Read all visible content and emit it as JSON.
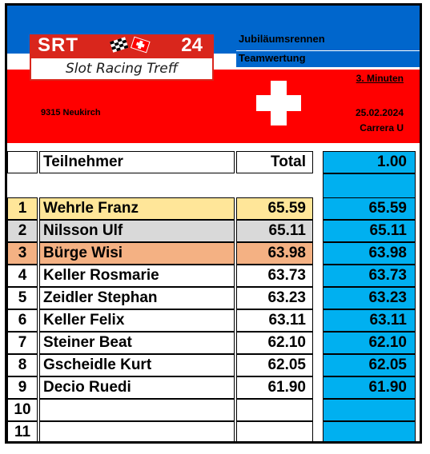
{
  "logo": {
    "srt": "SRT",
    "number": "24",
    "subtitle": "Slot Racing Treff",
    "colors": {
      "red": "#d9261c"
    }
  },
  "header": {
    "title": "Jubiläumsrennen",
    "subtitle": "Teamwertung",
    "mode": "3. Minuten",
    "location": "9315 Neukirch",
    "date": "25.02.2024",
    "track": "Carrera U"
  },
  "table": {
    "col_participant": "Teilnehmer",
    "col_total": "Total",
    "factor": "1.00",
    "rows": [
      {
        "rank": "1",
        "name": "Wehrle Franz",
        "total": "65.59",
        "score": "65.59"
      },
      {
        "rank": "2",
        "name": "Nilsson Ulf",
        "total": "65.11",
        "score": "65.11"
      },
      {
        "rank": "3",
        "name": "Bürge Wisi",
        "total": "63.98",
        "score": "63.98"
      },
      {
        "rank": "4",
        "name": "Keller Rosmarie",
        "total": "63.73",
        "score": "63.73"
      },
      {
        "rank": "5",
        "name": "Zeidler Stephan",
        "total": "63.23",
        "score": "63.23"
      },
      {
        "rank": "6",
        "name": "Keller Felix",
        "total": "63.11",
        "score": "63.11"
      },
      {
        "rank": "7",
        "name": "Steiner Beat",
        "total": "62.10",
        "score": "62.10"
      },
      {
        "rank": "8",
        "name": "Gscheidle Kurt",
        "total": "62.05",
        "score": "62.05"
      },
      {
        "rank": "9",
        "name": "Decio Ruedi",
        "total": "61.90",
        "score": "61.90"
      },
      {
        "rank": "10",
        "name": "",
        "total": "",
        "score": ""
      },
      {
        "rank": "11",
        "name": "",
        "total": "",
        "score": ""
      }
    ]
  },
  "colors": {
    "blue": "#0066cc",
    "red": "#ff0000",
    "score_bg": "#00b0f0",
    "gold": "#ffe699",
    "silver": "#d9d9d9",
    "bronze": "#f4b183"
  }
}
